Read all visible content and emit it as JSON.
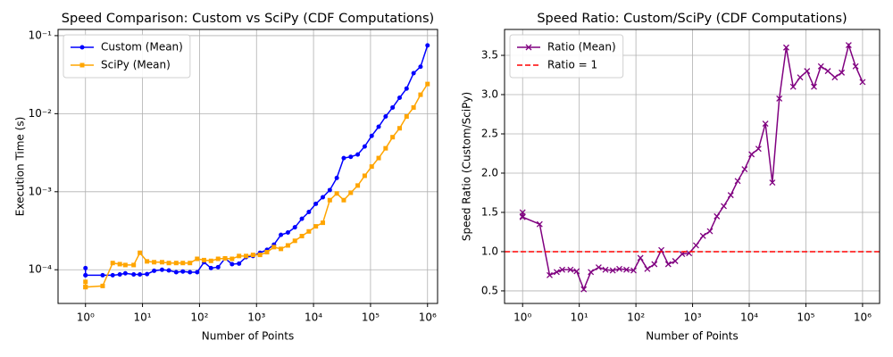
{
  "chart_data": [
    {
      "type": "line",
      "title": "Speed Comparison: Custom vs SciPy (CDF Computations)",
      "xlabel": "Number of Points",
      "ylabel": "Execution Time (s)",
      "xscale": "log",
      "yscale": "log",
      "grid": true,
      "legend": "upper left",
      "xlim": [
        0.33,
        1500000
      ],
      "ylim": [
        3.7e-05,
        0.12
      ],
      "xticks": [
        {
          "value": 1,
          "label": "10⁰"
        },
        {
          "value": 10,
          "label": "10¹"
        },
        {
          "value": 100,
          "label": "10²"
        },
        {
          "value": 1000,
          "label": "10³"
        },
        {
          "value": 10000,
          "label": "10⁴"
        },
        {
          "value": 100000,
          "label": "10⁵"
        },
        {
          "value": 1000000,
          "label": "10⁶"
        }
      ],
      "yticks": [
        {
          "value": 0.0001,
          "label": "10⁻⁴"
        },
        {
          "value": 0.001,
          "label": "10⁻³"
        },
        {
          "value": 0.01,
          "label": "10⁻²"
        },
        {
          "value": 0.1,
          "label": "10⁻¹"
        }
      ],
      "x": [
        1,
        1,
        1,
        2,
        3,
        4,
        5,
        7,
        9,
        12,
        16,
        22,
        29,
        39,
        51,
        68,
        91,
        120,
        159,
        212,
        281,
        372,
        494,
        655,
        868,
        1151,
        1526,
        2023,
        2682,
        3556,
        4714,
        6250,
        8286,
        10985,
        14563,
        19306,
        25595,
        33932,
        44984,
        59636,
        79060,
        104811,
        138949,
        184206,
        244205,
        323745,
        429193,
        568986,
        754312,
        1000000
      ],
      "series": [
        {
          "name": "Custom (Mean)",
          "color": "#0000ff",
          "marker": "o",
          "values": [
            0.000105,
            8.5e-05,
            8.5e-05,
            8.5e-05,
            8.5e-05,
            8.7e-05,
            9e-05,
            8.7e-05,
            8.7e-05,
            8.8e-05,
            9.7e-05,
            0.0001,
            9.8e-05,
            9.3e-05,
            9.5e-05,
            9.3e-05,
            9.3e-05,
            0.000125,
            0.000105,
            0.000108,
            0.00014,
            0.000118,
            0.00012,
            0.000145,
            0.00015,
            0.000165,
            0.00018,
            0.00021,
            0.00028,
            0.0003,
            0.00035,
            0.00045,
            0.00055,
            0.0007,
            0.00085,
            0.00105,
            0.0015,
            0.0027,
            0.0028,
            0.003,
            0.0038,
            0.0052,
            0.0068,
            0.0092,
            0.012,
            0.016,
            0.021,
            0.033,
            0.04,
            0.075
          ]
        },
        {
          "name": "SciPy (Mean)",
          "color": "#ffa500",
          "marker": "s",
          "values": [
            7e-05,
            6e-05,
            6e-05,
            6.2e-05,
            0.000122,
            0.000118,
            0.000115,
            0.000115,
            0.000165,
            0.000128,
            0.000125,
            0.000125,
            0.000122,
            0.000122,
            0.000122,
            0.000122,
            0.000138,
            0.000133,
            0.00013,
            0.000138,
            0.00014,
            0.000138,
            0.00015,
            0.00015,
            0.000155,
            0.000155,
            0.000168,
            0.000195,
            0.000185,
            0.000205,
            0.000235,
            0.00027,
            0.00031,
            0.00036,
            0.0004,
            0.00078,
            0.00095,
            0.00078,
            0.00097,
            0.0012,
            0.0016,
            0.0021,
            0.0027,
            0.0036,
            0.005,
            0.0065,
            0.0092,
            0.012,
            0.0175,
            0.024
          ]
        }
      ]
    },
    {
      "type": "line",
      "title": "Speed Ratio: Custom/SciPy (CDF Computations)",
      "xlabel": "Number of Points",
      "ylabel": "Speed Ratio (Custom/SciPy)",
      "xscale": "log",
      "grid": true,
      "legend": "upper left",
      "xlim": [
        0.48,
        2000000
      ],
      "ylim": [
        0.34,
        3.83
      ],
      "xticks": [
        {
          "value": 1,
          "label": "10⁰"
        },
        {
          "value": 10,
          "label": "10¹"
        },
        {
          "value": 100,
          "label": "10²"
        },
        {
          "value": 1000,
          "label": "10³"
        },
        {
          "value": 10000,
          "label": "10⁴"
        },
        {
          "value": 100000,
          "label": "10⁵"
        },
        {
          "value": 1000000,
          "label": "10⁶"
        }
      ],
      "yticks": [
        0.5,
        {
          "value": 1,
          "label": "1.0"
        },
        1.5,
        {
          "value": 2,
          "label": "2.0"
        },
        2.5,
        {
          "value": 3,
          "label": "3.0"
        },
        3.5
      ],
      "x": [
        1,
        1,
        1,
        2,
        3,
        4,
        5,
        7,
        9,
        12,
        16,
        22,
        29,
        39,
        51,
        68,
        91,
        120,
        159,
        212,
        281,
        372,
        494,
        655,
        868,
        1151,
        1526,
        2023,
        2682,
        3556,
        4714,
        6250,
        8286,
        10985,
        14563,
        19306,
        25595,
        33932,
        44984,
        59636,
        79060,
        104811,
        138949,
        184206,
        244205,
        323745,
        429193,
        568986,
        754312,
        1000000
      ],
      "series": [
        {
          "name": "Ratio (Mean)",
          "color": "#800080",
          "marker": "x",
          "values": [
            1.5,
            1.45,
            1.44,
            1.35,
            0.7,
            0.74,
            0.77,
            0.77,
            0.75,
            0.52,
            0.74,
            0.8,
            0.77,
            0.76,
            0.78,
            0.77,
            0.76,
            0.92,
            0.78,
            0.84,
            1.02,
            0.84,
            0.88,
            0.97,
            0.98,
            1.08,
            1.2,
            1.26,
            1.45,
            1.58,
            1.72,
            1.9,
            2.05,
            2.24,
            2.31,
            2.63,
            1.88,
            2.95,
            3.6,
            3.1,
            3.22,
            3.3,
            3.1,
            3.36,
            3.3,
            3.22,
            3.28,
            3.63,
            3.36,
            3.16
          ]
        }
      ],
      "reference_line": {
        "name": "Ratio = 1",
        "value": 1,
        "color": "#ff0000"
      }
    }
  ]
}
